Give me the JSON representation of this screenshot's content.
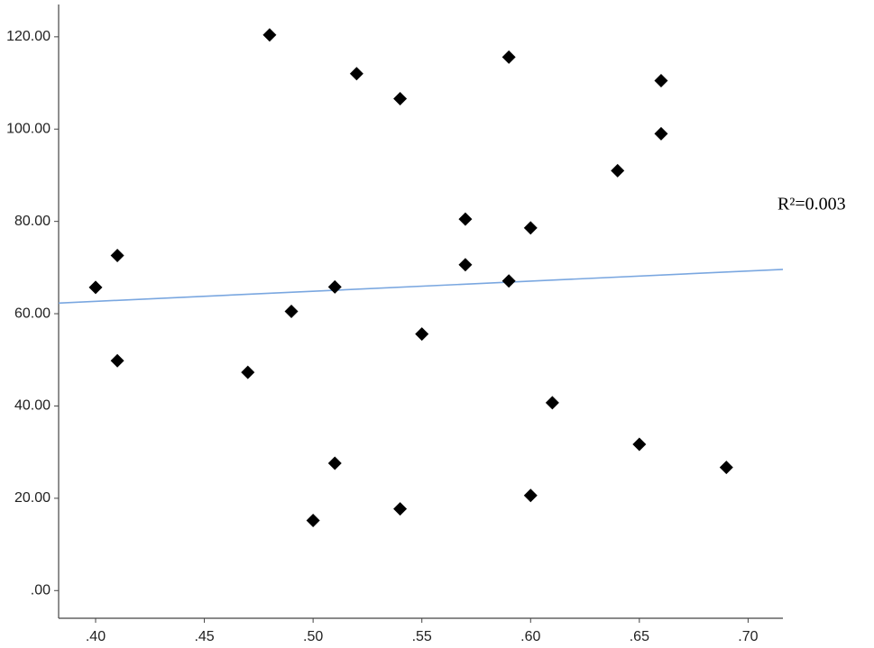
{
  "chart_data": {
    "type": "scatter",
    "x": [
      0.4,
      0.41,
      0.41,
      0.47,
      0.48,
      0.49,
      0.5,
      0.51,
      0.51,
      0.52,
      0.54,
      0.54,
      0.55,
      0.57,
      0.57,
      0.59,
      0.59,
      0.6,
      0.6,
      0.61,
      0.64,
      0.65,
      0.66,
      0.66,
      0.69
    ],
    "values": [
      65.7,
      72.6,
      49.8,
      47.3,
      120.4,
      60.5,
      15.2,
      65.8,
      27.6,
      112,
      106.6,
      17.7,
      55.6,
      80.5,
      70.6,
      115.6,
      67.1,
      78.6,
      20.6,
      40.7,
      91,
      31.7,
      110.5,
      99,
      26.7
    ],
    "color": "#000000",
    "fit": {
      "x": [
        0.383,
        0.716
      ],
      "y": [
        62.3,
        69.6
      ],
      "color": "#7aa7e0"
    },
    "annotation": "R²=0.003",
    "xlim": [
      0.383,
      0.716
    ],
    "ylim": [
      -6,
      127
    ],
    "xticks": [
      {
        "value": 0.4,
        "label": ".40"
      },
      {
        "value": 0.45,
        "label": ".45"
      },
      {
        "value": 0.5,
        "label": ".50"
      },
      {
        "value": 0.55,
        "label": ".55"
      },
      {
        "value": 0.6,
        "label": ".60"
      },
      {
        "value": 0.65,
        "label": ".65"
      },
      {
        "value": 0.7,
        "label": ".70"
      }
    ],
    "yticks": [
      {
        "value": 0,
        "label": ".00"
      },
      {
        "value": 20,
        "label": "20.00"
      },
      {
        "value": 40,
        "label": "40.00"
      },
      {
        "value": 60,
        "label": "60.00"
      },
      {
        "value": 80,
        "label": "80.00"
      },
      {
        "value": 100,
        "label": "100.00"
      },
      {
        "value": 120,
        "label": "120.00"
      }
    ],
    "grid": false
  }
}
